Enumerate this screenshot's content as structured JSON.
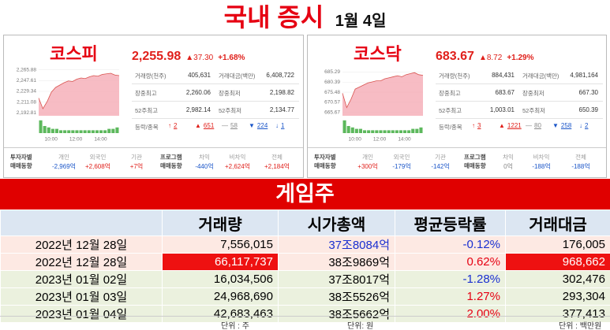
{
  "header": {
    "title": "국내 증시",
    "date": "1월 4일"
  },
  "markets": [
    {
      "name": "코스피",
      "index": "2,255.98",
      "change": "▲37.30",
      "change_pct": "+1.68%",
      "chart": {
        "type": "line",
        "color": "#d9534f",
        "ylim": [
          2188,
          2268
        ],
        "yticks": [
          {
            "value": 2192.81,
            "label": "2,192.81"
          },
          {
            "value": 2211.08,
            "label": "2,211.08"
          },
          {
            "value": 2229.34,
            "label": "2,229.34"
          },
          {
            "value": 2247.61,
            "label": "2,247.61"
          },
          {
            "value": 2265.88,
            "label": "2,265.88"
          }
        ],
        "xlim": [
          "09:00",
          "15:30"
        ],
        "xticks": [
          "10:00",
          "12:00",
          "14:00"
        ],
        "values": [
          2218,
          2200,
          2212,
          2228,
          2236,
          2240,
          2244,
          2247,
          2246,
          2250,
          2252,
          2251,
          2254,
          2256,
          2255,
          2258,
          2259,
          2260,
          2257,
          2256
        ],
        "volume": [
          9,
          5,
          4,
          3,
          3,
          2,
          2,
          2,
          2,
          2,
          2,
          2,
          2,
          2,
          2,
          2,
          2,
          3,
          3,
          4
        ],
        "volume_lim": [
          0,
          10
        ]
      },
      "stats": [
        {
          "label": "거래량(천주)",
          "value": "405,631"
        },
        {
          "label": "거래대금(백만)",
          "value": "6,408,722"
        },
        {
          "label": "장중최고",
          "value": "2,260.06"
        },
        {
          "label": "장중최저",
          "value": "2,198.82"
        },
        {
          "label": "52주최고",
          "value": "2,982.14"
        },
        {
          "label": "52주최저",
          "value": "2,134.77"
        }
      ],
      "breadth": {
        "label": "등락/종목",
        "values": [
          "2",
          "651",
          "58",
          "224",
          "1"
        ]
      },
      "investors": {
        "label": [
          "투자자별",
          "매매동향"
        ],
        "items": [
          {
            "name": "개인",
            "value": "-2,969억"
          },
          {
            "name": "외국인",
            "value": "+2,608억"
          },
          {
            "name": "기관",
            "value": "+7억"
          }
        ]
      },
      "program": {
        "label": [
          "프로그램",
          "매매동향"
        ],
        "items": [
          {
            "name": "차익",
            "value": "-440억"
          },
          {
            "name": "비차익",
            "value": "+2,624억"
          },
          {
            "name": "전체",
            "value": "+2,184억"
          }
        ]
      }
    },
    {
      "name": "코스닥",
      "index": "683.67",
      "change": "▲8.72",
      "change_pct": "+1.29%",
      "chart": {
        "type": "line",
        "color": "#d9534f",
        "ylim": [
          664,
          687
        ],
        "yticks": [
          {
            "value": 665.67,
            "label": "665.67"
          },
          {
            "value": 670.57,
            "label": "670.57"
          },
          {
            "value": 675.48,
            "label": "675.48"
          },
          {
            "value": 680.39,
            "label": "680.39"
          },
          {
            "value": 685.29,
            "label": "685.29"
          }
        ],
        "xlim": [
          "09:00",
          "15:30"
        ],
        "xticks": [
          "10:00",
          "12:00",
          "14:00"
        ],
        "values": [
          675,
          668,
          672,
          677,
          678,
          679,
          680,
          680.5,
          681,
          681,
          682,
          682.5,
          683,
          683.5,
          683,
          684,
          684.5,
          685,
          684,
          683.7
        ],
        "volume": [
          9,
          5,
          4,
          3,
          3,
          2,
          2,
          2,
          2,
          2,
          2,
          2,
          2,
          2,
          2,
          2,
          2,
          3,
          3,
          4
        ],
        "volume_lim": [
          0,
          10
        ]
      },
      "stats": [
        {
          "label": "거래량(천주)",
          "value": "884,431"
        },
        {
          "label": "거래대금(백만)",
          "value": "4,981,164"
        },
        {
          "label": "장중최고",
          "value": "683.67"
        },
        {
          "label": "장중최저",
          "value": "667.30"
        },
        {
          "label": "52주최고",
          "value": "1,003.01"
        },
        {
          "label": "52주최저",
          "value": "650.39"
        }
      ],
      "breadth": {
        "label": "등락/종목",
        "values": [
          "3",
          "1221",
          "80",
          "258",
          "2"
        ]
      },
      "investors": {
        "label": [
          "투자자별",
          "매매동향"
        ],
        "items": [
          {
            "name": "개인",
            "value": "+300억"
          },
          {
            "name": "외국인",
            "value": "-179억"
          },
          {
            "name": "기관",
            "value": "-142억"
          }
        ]
      },
      "program": {
        "label": [
          "프로그램",
          "매매동향"
        ],
        "items": [
          {
            "name": "차익",
            "value": "0억"
          },
          {
            "name": "비차익",
            "value": "-188억"
          },
          {
            "name": "전체",
            "value": "-188억"
          }
        ]
      }
    }
  ],
  "game": {
    "title": "게임주",
    "columns": [
      "거래량",
      "시가총액",
      "평균등락률",
      "거래대금"
    ],
    "rows": [
      [
        "2022년 12월 28일",
        "7,556,015",
        "37조8084억",
        "-0.12%",
        "176,005"
      ],
      [
        "2022년 12월 28일",
        "66,117,737",
        "38조9869억",
        "0.62%",
        "968,662"
      ],
      [
        "2023년 01월 02일",
        "16,034,506",
        "37조8017억",
        "-1.28%",
        "302,476"
      ],
      [
        "2023년 01월 03일",
        "24,968,690",
        "38조5526억",
        "1.27%",
        "293,304"
      ],
      [
        "2023년 01월 04일",
        "42,683,463",
        "38조5662억",
        "2.00%",
        "377,413"
      ]
    ],
    "units": [
      "단위 : 주",
      "단위: 원",
      "단위 : 백만원"
    ]
  }
}
